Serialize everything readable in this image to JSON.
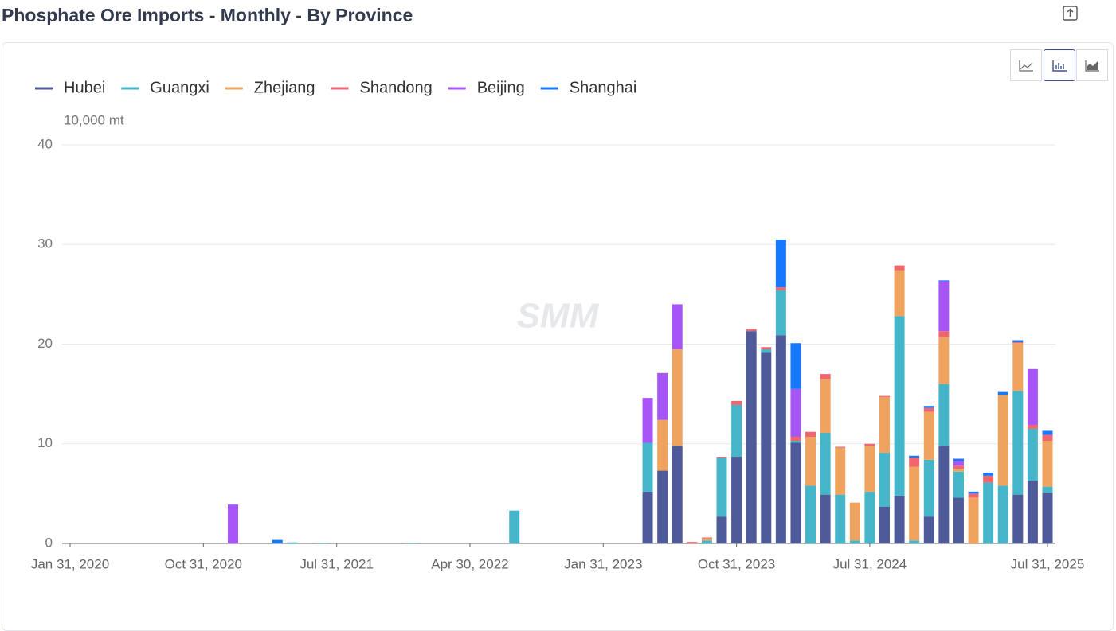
{
  "title": "Phosphate Ore Imports - Monthly - By Province",
  "chart_data": {
    "type": "stacked_bar",
    "unit_label": "10,000 mt",
    "watermark": "SMM",
    "categories": [
      "Jan 31, 2020",
      null,
      null,
      null,
      null,
      null,
      null,
      null,
      null,
      "Oct 31, 2020",
      null,
      null,
      null,
      null,
      null,
      null,
      null,
      null,
      "Jul 31, 2021",
      null,
      null,
      null,
      null,
      null,
      null,
      null,
      null,
      "Apr 30, 2022",
      null,
      null,
      null,
      null,
      null,
      null,
      null,
      null,
      "Jan 31, 2023",
      null,
      null,
      null,
      null,
      null,
      null,
      null,
      null,
      "Oct 31, 2023",
      null,
      null,
      null,
      null,
      null,
      null,
      null,
      null,
      "Jul 31, 2024",
      null,
      null,
      null,
      null,
      null,
      null,
      null,
      null,
      null,
      null,
      null,
      "Jul 31, 2025"
    ],
    "series": [
      {
        "name": "Hubei",
        "color": "#4e5a9a",
        "values": [
          0,
          0,
          0,
          0,
          0,
          0,
          0,
          0,
          0,
          0,
          0,
          0,
          0,
          0,
          0,
          0,
          0,
          0,
          0,
          0,
          0,
          0,
          0,
          0,
          0,
          0,
          0,
          0,
          0,
          0,
          0,
          0,
          0,
          0,
          0,
          0,
          0,
          0,
          0,
          5.2,
          7.3,
          9.8,
          0,
          0,
          2.7,
          8.7,
          21.3,
          19.2,
          20.9,
          10.1,
          0,
          4.9,
          0,
          0,
          0,
          3.7,
          4.8,
          0,
          2.7,
          9.8,
          4.6,
          0,
          0,
          0,
          4.9,
          6.3,
          5.1
        ]
      },
      {
        "name": "Guangxi",
        "color": "#45b6c9",
        "values": [
          0,
          0,
          0,
          0,
          0,
          0,
          0,
          0,
          0,
          0,
          0,
          0,
          0,
          0,
          0,
          0.1,
          0,
          0.05,
          0,
          0,
          0,
          0,
          0,
          0.05,
          0,
          0,
          0,
          0,
          0,
          0,
          3.3,
          0,
          0,
          0,
          0,
          0,
          0,
          0,
          0,
          4.9,
          0,
          0,
          0,
          0.3,
          5.9,
          5.2,
          0,
          0.3,
          4.5,
          0.2,
          5.8,
          6.2,
          4.9,
          0.3,
          5.2,
          5.4,
          18,
          0.3,
          5.7,
          6.2,
          2.6,
          0,
          6.1,
          5.8,
          10.4,
          5.2,
          0.6
        ]
      },
      {
        "name": "Zhejiang",
        "color": "#f0a35e",
        "values": [
          0,
          0,
          0,
          0,
          0,
          0,
          0,
          0,
          0,
          0,
          0,
          0,
          0,
          0,
          0,
          0,
          0,
          0,
          0,
          0,
          0,
          0,
          0,
          0,
          0,
          0,
          0,
          0,
          0,
          0,
          0,
          0,
          0,
          0,
          0,
          0,
          0,
          0,
          0,
          0,
          5.1,
          9.7,
          0,
          0.2,
          0,
          0,
          0,
          0,
          0,
          0,
          4.9,
          5.4,
          4.7,
          3.8,
          4.6,
          5.6,
          4.6,
          7.4,
          4.8,
          4.7,
          0.3,
          4.6,
          0,
          9.1,
          4.8,
          0,
          4.6
        ]
      },
      {
        "name": "Shandong",
        "color": "#f0666e",
        "values": [
          0,
          0,
          0,
          0,
          0,
          0,
          0,
          0,
          0,
          0,
          0,
          0,
          0,
          0,
          0,
          0,
          0,
          0,
          0,
          0,
          0,
          0,
          0,
          0,
          0,
          0,
          0,
          0,
          0,
          0,
          0,
          0,
          0,
          0,
          0,
          0,
          0,
          0,
          0,
          0,
          0,
          0,
          0.15,
          0.1,
          0.1,
          0.4,
          0.2,
          0.2,
          0.3,
          0.4,
          0.5,
          0.5,
          0.1,
          0,
          0.2,
          0.1,
          0.5,
          0.9,
          0.4,
          0.6,
          0.3,
          0.4,
          0.7,
          0,
          0.1,
          0.4,
          0.6
        ]
      },
      {
        "name": "Beijing",
        "color": "#a855f7",
        "values": [
          0,
          0,
          0,
          0,
          0,
          0,
          0,
          0,
          0,
          0,
          0,
          3.9,
          0,
          0,
          0,
          0,
          0,
          0,
          0,
          0,
          0,
          0,
          0,
          0,
          0,
          0,
          0,
          0,
          0,
          0,
          0,
          0,
          0,
          0,
          0,
          0,
          0,
          0,
          0,
          4.5,
          4.7,
          4.5,
          0,
          0,
          0,
          0,
          0,
          0,
          0,
          4.8,
          0,
          0,
          0,
          0,
          0,
          0,
          0,
          0,
          0,
          5.0,
          0.5,
          0,
          0,
          0,
          0,
          5.6,
          0
        ]
      },
      {
        "name": "Shanghai",
        "color": "#1677ff",
        "values": [
          0,
          0,
          0,
          0,
          0,
          0,
          0,
          0,
          0,
          0,
          0,
          0,
          0,
          0,
          0.35,
          0,
          0,
          0,
          0,
          0,
          0,
          0,
          0,
          0,
          0,
          0,
          0,
          0,
          0,
          0,
          0,
          0,
          0,
          0,
          0,
          0,
          0,
          0,
          0,
          0,
          0,
          0,
          0,
          0,
          0,
          0,
          0,
          0,
          4.8,
          4.6,
          0,
          0,
          0,
          0,
          0,
          0,
          0,
          0.2,
          0.2,
          0.1,
          0.2,
          0.2,
          0.3,
          0.3,
          0.2,
          0,
          0.4
        ]
      }
    ],
    "ylim": [
      0,
      40
    ],
    "yticks": [
      0,
      10,
      20,
      30,
      40
    ],
    "grid": true
  }
}
